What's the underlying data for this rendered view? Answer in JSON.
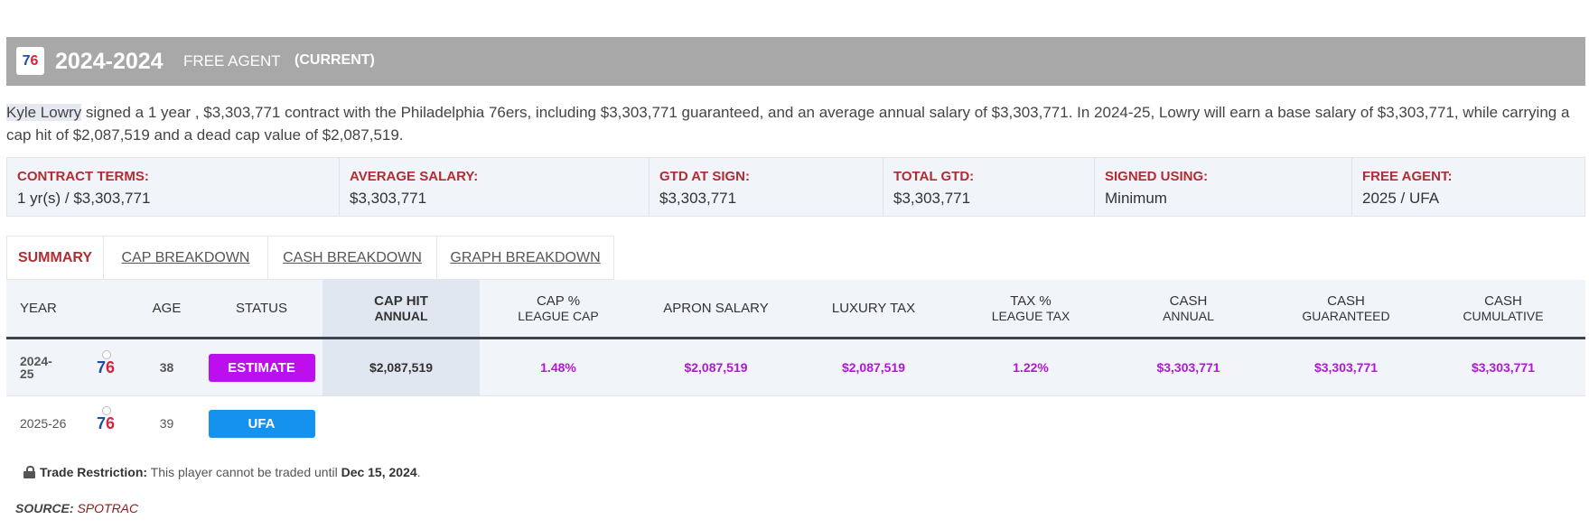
{
  "header": {
    "logo_text": "76",
    "year": "2024-2024",
    "free_agent": "FREE AGENT",
    "current": "(CURRENT)"
  },
  "summary": {
    "player_name": "Kyle Lowry",
    "text": " signed a 1 year , $3,303,771 contract with the Philadelphia 76ers, including $3,303,771 guaranteed, and an average annual salary of $3,303,771. In 2024-25, Lowry will earn a base salary of $3,303,771, while carrying a cap hit of $2,087,519 and a dead cap value of $2,087,519."
  },
  "terms": [
    {
      "label": "CONTRACT TERMS:",
      "value": "1 yr(s) / $3,303,771"
    },
    {
      "label": "AVERAGE SALARY:",
      "value": "$3,303,771"
    },
    {
      "label": "GTD AT SIGN:",
      "value": "$3,303,771"
    },
    {
      "label": "TOTAL GTD:",
      "value": "$3,303,771"
    },
    {
      "label": "SIGNED USING:",
      "value": "Minimum"
    },
    {
      "label": "FREE AGENT:",
      "value": "2025 / UFA"
    }
  ],
  "tabs": [
    "SUMMARY",
    "CAP BREAKDOWN",
    "CASH BREAKDOWN",
    "GRAPH BREAKDOWN"
  ],
  "table": {
    "headers": {
      "year": "YEAR",
      "age": "AGE",
      "status": "STATUS",
      "cap_hit": [
        "CAP HIT",
        "ANNUAL"
      ],
      "cap_pct": [
        "CAP %",
        "LEAGUE CAP"
      ],
      "apron": "APRON SALARY",
      "luxury": "LUXURY TAX",
      "tax_pct": [
        "TAX %",
        "LEAGUE TAX"
      ],
      "cash_annual": [
        "CASH",
        "ANNUAL"
      ],
      "cash_gtd": [
        "CASH",
        "GUARANTEED"
      ],
      "cash_cum": [
        "CASH",
        "CUMULATIVE"
      ]
    },
    "rows": [
      {
        "year_l1": "2024-",
        "year_l2": "25",
        "age": "38",
        "status": "ESTIMATE",
        "cap_hit": "$2,087,519",
        "cap_pct": "1.48%",
        "apron": "$2,087,519",
        "luxury": "$2,087,519",
        "tax_pct": "1.22%",
        "cash_annual": "$3,303,771",
        "cash_gtd": "$3,303,771",
        "cash_cum": "$3,303,771"
      },
      {
        "year": "2025-26",
        "age": "39",
        "status": "UFA"
      }
    ]
  },
  "restriction": {
    "label": "Trade Restriction:",
    "text": " This player cannot be traded until ",
    "date": "Dec 15, 2024",
    "end": "."
  },
  "source": {
    "label": "SOURCE:",
    "value": "SPOTRAC"
  },
  "colors": {
    "header_bg": "#a8a8a8",
    "accent_red": "#b22d31",
    "estimate": "#bd0ef0",
    "ufa": "#1592ee",
    "value_purple": "#b217d6"
  },
  "icons": {
    "team_logo": "76ers-logo-icon",
    "lock": "lock-icon"
  }
}
